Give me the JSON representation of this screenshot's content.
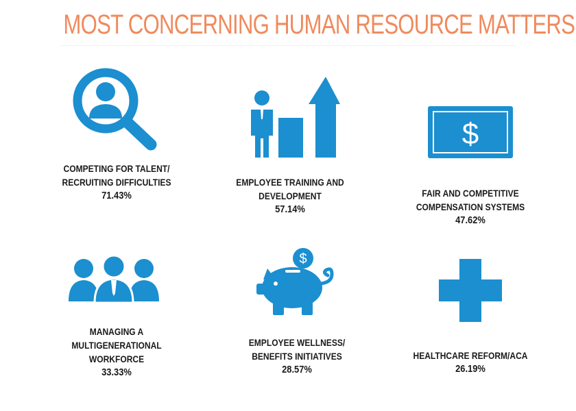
{
  "title": "MOST CONCERNING HUMAN RESOURCE MATTERS",
  "colors": {
    "title": "#f08a5d",
    "icon": "#1b8fd0",
    "text": "#1a1a1a"
  },
  "items": [
    {
      "icon": "magnifier-person-icon",
      "lines": [
        "COMPETING FOR TALENT/",
        "RECRUITING DIFFICULTIES"
      ],
      "percent": "71.43%"
    },
    {
      "icon": "growth-chart-person-icon",
      "lines": [
        "EMPLOYEE TRAINING AND",
        "DEVELOPMENT"
      ],
      "percent": "57.14%"
    },
    {
      "icon": "dollar-bill-icon",
      "lines": [
        "FAIR AND COMPETITIVE",
        "COMPENSATION SYSTEMS"
      ],
      "percent": "47.62%"
    },
    {
      "icon": "group-people-icon",
      "lines": [
        "MANAGING A",
        "MULTIGENERATIONAL",
        "WORKFORCE"
      ],
      "percent": "33.33%"
    },
    {
      "icon": "piggy-bank-icon",
      "lines": [
        "EMPLOYEE WELLNESS/",
        "BENEFITS INITIATIVES"
      ],
      "percent": "28.57%"
    },
    {
      "icon": "medical-cross-icon",
      "lines": [
        "HEALTHCARE REFORM/ACA"
      ],
      "percent": "26.19%"
    }
  ]
}
